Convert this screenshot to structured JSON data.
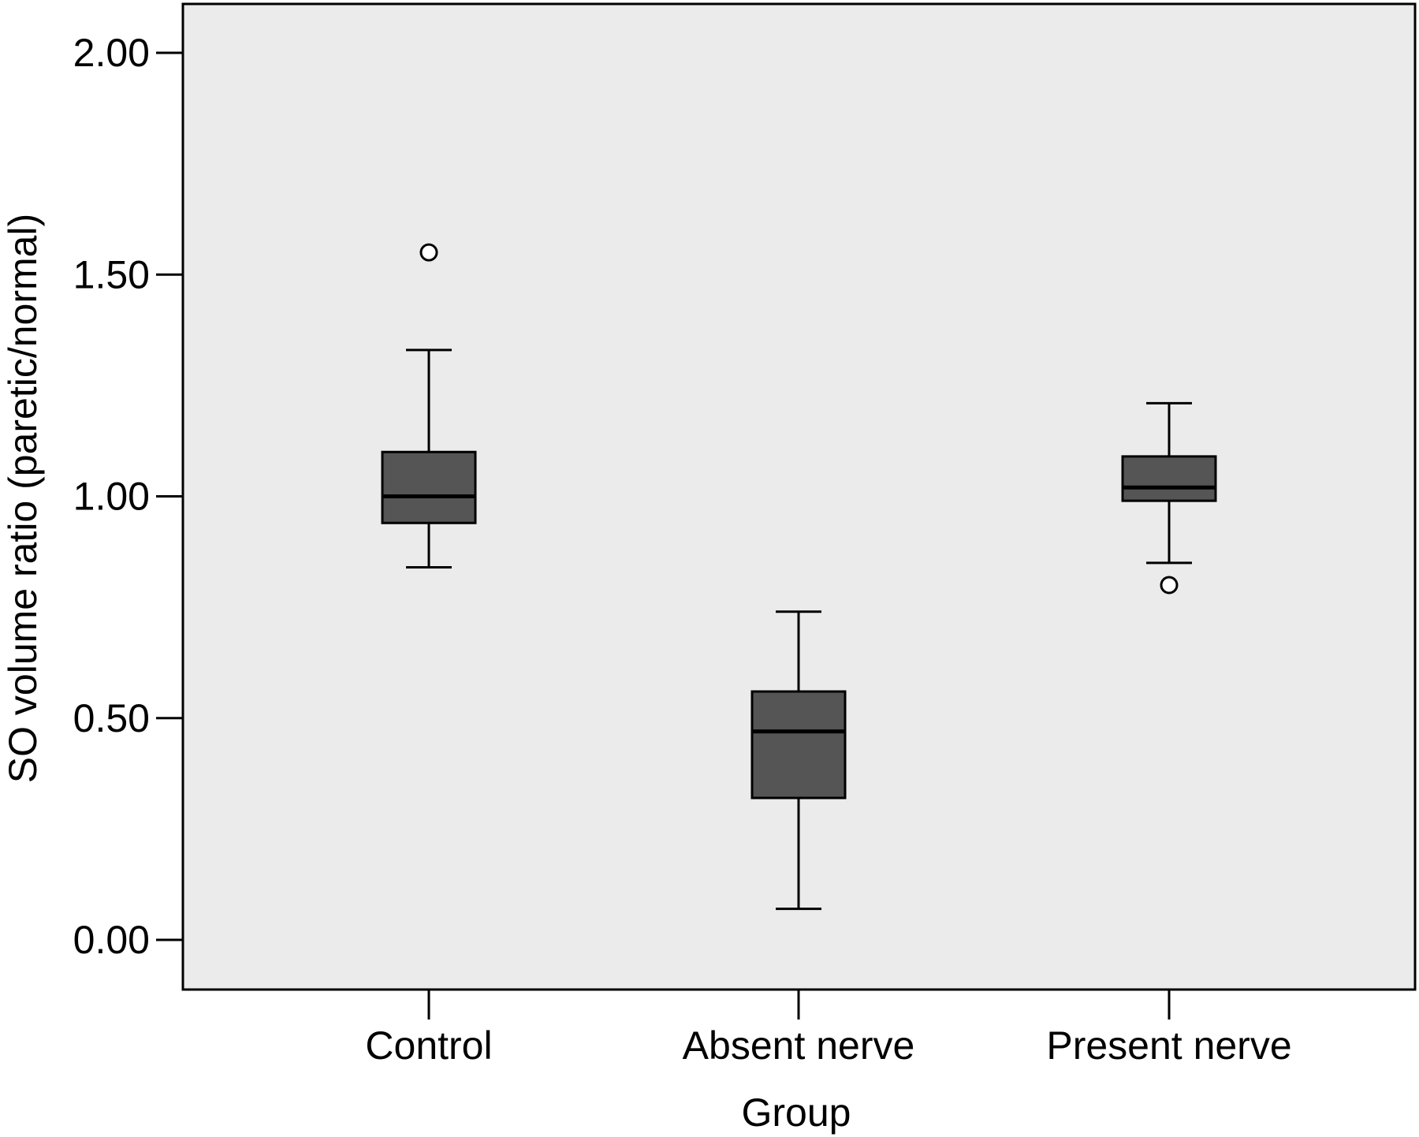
{
  "chart_data": {
    "type": "box",
    "title": "",
    "xlabel": "Group",
    "ylabel": "SO volume ratio (paretic/normal)",
    "ylim": [
      -0.1,
      2.11
    ],
    "yticks": [
      "0.00",
      "0.50",
      "1.00",
      "1.50",
      "2.00"
    ],
    "ytick_values": [
      0,
      0.5,
      1.0,
      1.5,
      2.0
    ],
    "grid": false,
    "plot_background": "#ebebeb",
    "box_fill": "#555555",
    "categories": [
      "Control",
      "Absent nerve",
      "Present nerve"
    ],
    "boxes": [
      {
        "group": "Control",
        "whisker_low": 0.84,
        "q1": 0.94,
        "median": 1.0,
        "q3": 1.1,
        "whisker_high": 1.33,
        "outliers": [
          1.55
        ]
      },
      {
        "group": "Absent nerve",
        "whisker_low": 0.07,
        "q1": 0.32,
        "median": 0.47,
        "q3": 0.56,
        "whisker_high": 0.74,
        "outliers": []
      },
      {
        "group": "Present nerve",
        "whisker_low": 0.85,
        "q1": 0.99,
        "median": 1.02,
        "q3": 1.09,
        "whisker_high": 1.21,
        "outliers": [
          0.8
        ]
      }
    ]
  }
}
